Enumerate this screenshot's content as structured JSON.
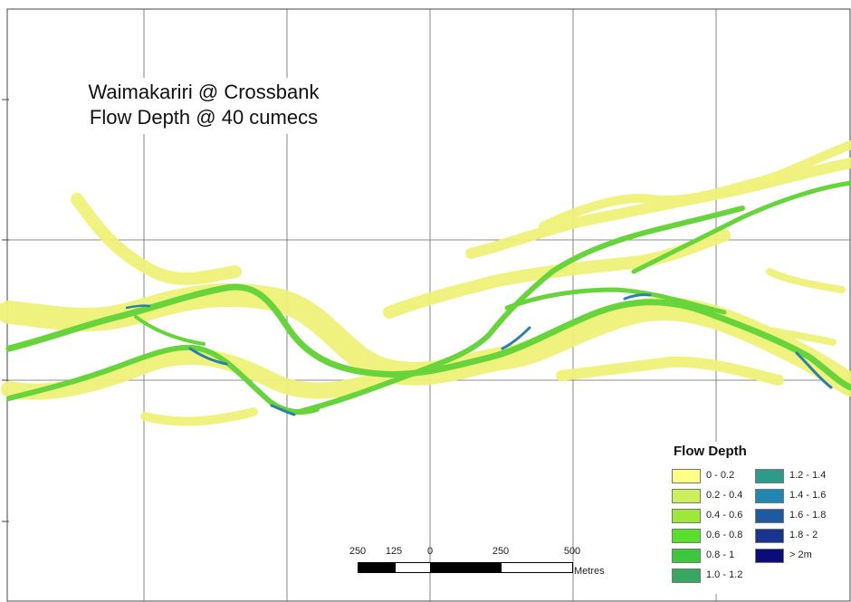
{
  "title": {
    "line1": "Waimakariri @ Crossbank",
    "line2": "Flow Depth @ 40 cumecs"
  },
  "legend": {
    "title": "Flow Depth",
    "items": [
      {
        "label": "0 - 0.2",
        "color": "#ffff88"
      },
      {
        "label": "0.2 - 0.4",
        "color": "#ccf05a"
      },
      {
        "label": "0.4 - 0.6",
        "color": "#9ee83a"
      },
      {
        "label": "0.6 - 0.8",
        "color": "#5ae02a"
      },
      {
        "label": "0.8 - 1",
        "color": "#3cc83c"
      },
      {
        "label": "1.0 - 1.2",
        "color": "#38a860"
      },
      {
        "label": "1.2 - 1.4",
        "color": "#2e9a8a"
      },
      {
        "label": "1.4 - 1.6",
        "color": "#2088b0"
      },
      {
        "label": "1.6 - 1.8",
        "color": "#1e5aa0"
      },
      {
        "label": "1.8 - 2",
        "color": "#1a3490"
      },
      {
        "label": "> 2m",
        "color": "#0c0c78"
      }
    ]
  },
  "scale": {
    "ticks": [
      "250",
      "125",
      "0",
      "250",
      "500"
    ],
    "unit": "Metres"
  },
  "colors": {
    "grid": "#555555",
    "shallow": "#f0f27a",
    "mid": "#66d43a",
    "deep": "#2a80a8"
  }
}
